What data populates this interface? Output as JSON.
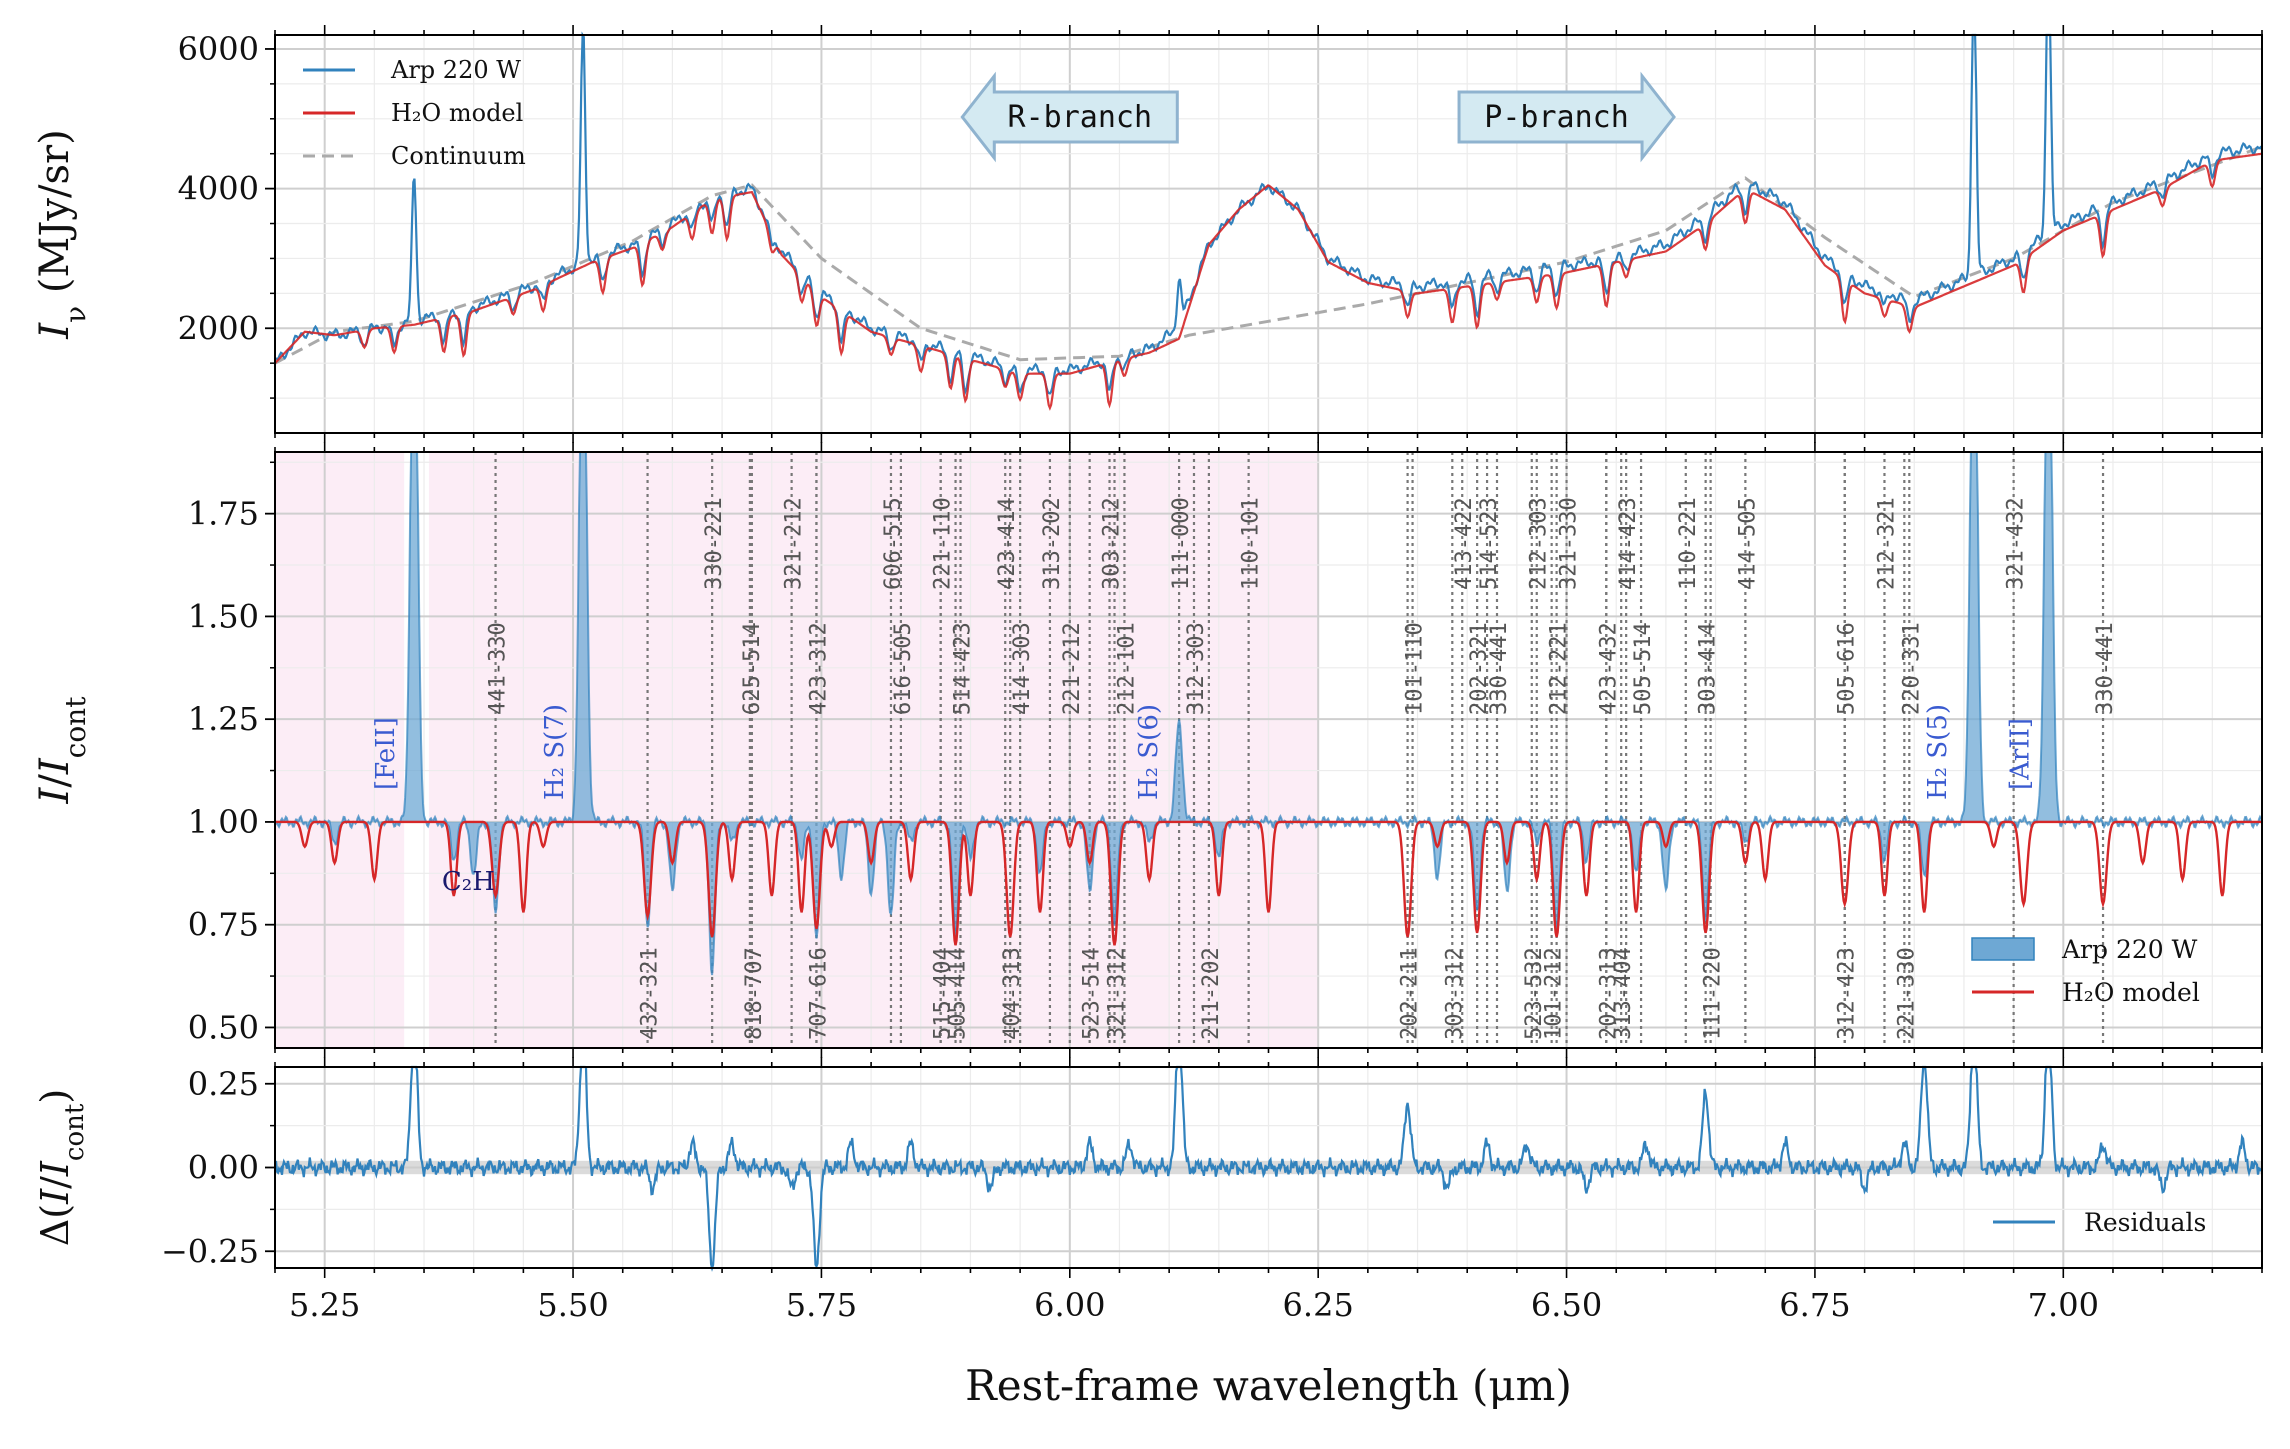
{
  "chart_data": [
    {
      "panel": "top",
      "type": "line",
      "ylabel": "I_ν (MJy/sr)",
      "ylim": [
        500,
        6200
      ],
      "xlim": [
        5.2,
        7.2
      ],
      "yticks": [
        "2000",
        "4000",
        "6000"
      ],
      "legend": {
        "placement": "top-left",
        "entries": [
          "Arp 220 W",
          "H₂O model",
          "Continuum"
        ]
      },
      "annotations": [
        {
          "text": "R-branch",
          "direction": "left",
          "x": 6.0
        },
        {
          "text": "P-branch",
          "direction": "right",
          "x": 6.5
        }
      ],
      "series": [
        {
          "name": "Arp 220 W",
          "color": "#3182bd",
          "x": [
            5.2,
            5.23,
            5.26,
            5.3,
            5.34,
            5.4,
            5.46,
            5.52,
            5.56,
            5.6,
            5.64,
            5.68,
            5.71,
            5.75,
            5.8,
            5.85,
            5.9,
            5.95,
            6.0,
            6.05,
            6.08,
            6.11,
            6.14,
            6.17,
            6.2,
            6.23,
            6.26,
            6.3,
            6.35,
            6.4,
            6.45,
            6.5,
            6.55,
            6.6,
            6.64,
            6.68,
            6.72,
            6.76,
            6.8,
            6.85,
            6.9,
            6.95,
            7.0,
            7.05,
            7.1,
            7.15,
            7.2
          ],
          "y": [
            1500,
            1950,
            1900,
            2000,
            2100,
            2300,
            2600,
            3000,
            3200,
            3500,
            3900,
            4000,
            3100,
            2500,
            2000,
            1800,
            1600,
            1400,
            1400,
            1600,
            1700,
            2000,
            3200,
            3700,
            4050,
            3700,
            3000,
            2700,
            2600,
            2700,
            2800,
            2900,
            3000,
            3200,
            3600,
            4100,
            3800,
            3000,
            2600,
            2400,
            2700,
            3000,
            3500,
            3800,
            4100,
            4500,
            4600
          ]
        },
        {
          "name": "H₂O model",
          "color": "#d62728",
          "x": [
            5.2,
            5.23,
            5.26,
            5.3,
            5.34,
            5.4,
            5.46,
            5.52,
            5.56,
            5.6,
            5.64,
            5.68,
            5.71,
            5.75,
            5.8,
            5.85,
            5.9,
            5.95,
            6.0,
            6.05,
            6.08,
            6.11,
            6.14,
            6.17,
            6.2,
            6.23,
            6.26,
            6.3,
            6.35,
            6.4,
            6.45,
            6.5,
            6.55,
            6.6,
            6.64,
            6.68,
            6.72,
            6.76,
            6.8,
            6.85,
            6.9,
            6.95,
            7.0,
            7.05,
            7.1,
            7.15,
            7.2
          ],
          "y": [
            1500,
            1950,
            1900,
            2000,
            2050,
            2250,
            2550,
            2950,
            3150,
            3450,
            3850,
            3950,
            3050,
            2450,
            1950,
            1750,
            1550,
            1350,
            1350,
            1550,
            1650,
            1850,
            3200,
            3700,
            4050,
            3700,
            2950,
            2650,
            2500,
            2600,
            2700,
            2800,
            2950,
            3100,
            3500,
            4000,
            3700,
            2900,
            2500,
            2300,
            2600,
            2900,
            3400,
            3700,
            4000,
            4400,
            4500
          ]
        },
        {
          "name": "Continuum",
          "color": "#aaaaaa",
          "x": [
            5.2,
            5.26,
            5.34,
            5.46,
            5.56,
            5.64,
            5.68,
            5.75,
            5.85,
            5.95,
            6.05,
            6.12,
            6.2,
            6.3,
            6.4,
            6.5,
            6.6,
            6.68,
            6.76,
            6.85,
            6.95,
            7.05,
            7.2
          ],
          "y": [
            1500,
            1950,
            2100,
            2650,
            3250,
            3900,
            4050,
            3000,
            2000,
            1550,
            1600,
            1900,
            2100,
            2350,
            2650,
            2950,
            3400,
            4150,
            3300,
            2450,
            3000,
            3800,
            4600
          ]
        }
      ]
    },
    {
      "panel": "middle",
      "type": "line",
      "ylabel": "I/I_cont",
      "ylim": [
        0.45,
        1.9
      ],
      "xlim": [
        5.2,
        7.2
      ],
      "yticks": [
        "0.50",
        "0.75",
        "1.00",
        "1.25",
        "1.50",
        "1.75"
      ],
      "shaded_regions": [
        [
          5.2,
          5.33
        ],
        [
          5.355,
          6.25
        ]
      ],
      "legend": {
        "placement": "bottom-right",
        "entries": [
          "Arp 220 W",
          "H₂O model"
        ]
      },
      "species_labels": [
        {
          "text": "[FeII]",
          "x": 5.34
        },
        {
          "text": "H₂ S(7)",
          "x": 5.51
        },
        {
          "text": "H₂ S(6)",
          "x": 6.11
        },
        {
          "text": "H₂ S(5)",
          "x": 6.91
        },
        {
          "text": "[ArII]",
          "x": 6.985
        },
        {
          "text": "C₂H",
          "x": 5.37
        }
      ],
      "upper_lines": [
        {
          "label": "441-330",
          "x": 5.422
        },
        {
          "label": "330-221",
          "x": 5.64
        },
        {
          "label": "625-514",
          "x": 5.678
        },
        {
          "label": "321-212",
          "x": 5.72
        },
        {
          "label": "423-312",
          "x": 5.745
        },
        {
          "label": "606-515",
          "x": 5.82
        },
        {
          "label": "616-505",
          "x": 5.83
        },
        {
          "label": "221-110",
          "x": 5.87
        },
        {
          "label": "514-423",
          "x": 5.89
        },
        {
          "label": "423-414",
          "x": 5.935
        },
        {
          "label": "414-303",
          "x": 5.95
        },
        {
          "label": "313-202",
          "x": 5.98
        },
        {
          "label": "221-212",
          "x": 6.0
        },
        {
          "label": "303-212",
          "x": 6.04
        },
        {
          "label": "212-101",
          "x": 6.055
        },
        {
          "label": "111-000",
          "x": 6.11
        },
        {
          "label": "312-303",
          "x": 6.125
        },
        {
          "label": "110-101",
          "x": 6.18
        },
        {
          "label": "101-110",
          "x": 6.345
        },
        {
          "label": "413-422",
          "x": 6.395
        },
        {
          "label": "202-321",
          "x": 6.41
        },
        {
          "label": "514-523",
          "x": 6.42
        },
        {
          "label": "330-441",
          "x": 6.43
        },
        {
          "label": "212-303",
          "x": 6.47
        },
        {
          "label": "212-221",
          "x": 6.49
        },
        {
          "label": "321-330",
          "x": 6.5
        },
        {
          "label": "423-432",
          "x": 6.54
        },
        {
          "label": "414-423",
          "x": 6.56
        },
        {
          "label": "505-514",
          "x": 6.575
        },
        {
          "label": "110-221",
          "x": 6.62
        },
        {
          "label": "303-414",
          "x": 6.64
        },
        {
          "label": "414-505",
          "x": 6.68
        },
        {
          "label": "505-616",
          "x": 6.78
        },
        {
          "label": "212-321",
          "x": 6.82
        },
        {
          "label": "220-331",
          "x": 6.845
        },
        {
          "label": "321-432",
          "x": 6.95
        },
        {
          "label": "330-441",
          "x": 7.04
        }
      ],
      "lower_lines": [
        {
          "label": "432-321",
          "x": 5.575
        },
        {
          "label": "818-707",
          "x": 5.68
        },
        {
          "label": "707-616",
          "x": 5.745
        },
        {
          "label": "515-404",
          "x": 5.87
        },
        {
          "label": "505-414",
          "x": 5.885
        },
        {
          "label": "404-313",
          "x": 5.94
        },
        {
          "label": "523-514",
          "x": 6.02
        },
        {
          "label": "321-312",
          "x": 6.045
        },
        {
          "label": "211-202",
          "x": 6.14
        },
        {
          "label": "202-211",
          "x": 6.34
        },
        {
          "label": "303-312",
          "x": 6.385
        },
        {
          "label": "523-532",
          "x": 6.465
        },
        {
          "label": "101-212",
          "x": 6.485
        },
        {
          "label": "202-313",
          "x": 6.54
        },
        {
          "label": "313-404",
          "x": 6.555
        },
        {
          "label": "111-220",
          "x": 6.645
        },
        {
          "label": "312-423",
          "x": 6.78
        },
        {
          "label": "221-330",
          "x": 6.84
        }
      ],
      "series": [
        {
          "name": "Arp 220 W",
          "color": "#3182bd",
          "emission": [
            {
              "x": 5.34,
              "peak": 1.9
            },
            {
              "x": 5.51,
              "peak": 1.9
            },
            {
              "x": 6.11,
              "peak": 1.15
            },
            {
              "x": 6.91,
              "peak": 1.9
            },
            {
              "x": 6.985,
              "peak": 1.9
            }
          ],
          "absorption": [
            {
              "x": 5.422,
              "depth": 0.78
            },
            {
              "x": 5.575,
              "depth": 0.75
            },
            {
              "x": 5.64,
              "depth": 0.63
            },
            {
              "x": 5.745,
              "depth": 0.72
            },
            {
              "x": 5.82,
              "depth": 0.77
            },
            {
              "x": 5.885,
              "depth": 0.72
            },
            {
              "x": 6.045,
              "depth": 0.75
            },
            {
              "x": 6.41,
              "depth": 0.78
            },
            {
              "x": 6.49,
              "depth": 0.75
            },
            {
              "x": 6.64,
              "depth": 0.77
            }
          ]
        },
        {
          "name": "H₂O model",
          "color": "#d62728",
          "absorption": [
            {
              "x": 5.422,
              "depth": 0.82
            },
            {
              "x": 5.575,
              "depth": 0.77
            },
            {
              "x": 5.64,
              "depth": 0.72
            },
            {
              "x": 5.745,
              "depth": 0.74
            },
            {
              "x": 5.885,
              "depth": 0.7
            },
            {
              "x": 5.94,
              "depth": 0.72
            },
            {
              "x": 6.045,
              "depth": 0.7
            },
            {
              "x": 6.34,
              "depth": 0.72
            },
            {
              "x": 6.41,
              "depth": 0.73
            },
            {
              "x": 6.49,
              "depth": 0.72
            },
            {
              "x": 6.64,
              "depth": 0.73
            },
            {
              "x": 6.78,
              "depth": 0.8
            },
            {
              "x": 6.96,
              "depth": 0.8
            },
            {
              "x": 7.04,
              "depth": 0.8
            }
          ]
        }
      ]
    },
    {
      "panel": "bottom",
      "type": "line",
      "ylabel": "Δ(I/I_cont)",
      "xlabel": "Rest-frame wavelength (μm)",
      "ylim": [
        -0.3,
        0.3
      ],
      "xlim": [
        5.2,
        7.2
      ],
      "yticks": [
        "−0.25",
        "0.00",
        "0.25"
      ],
      "xticks": [
        "5.25",
        "5.50",
        "5.75",
        "6.00",
        "6.25",
        "6.50",
        "6.75",
        "7.00"
      ],
      "legend": {
        "placement": "bottom-right",
        "entries": [
          "Residuals"
        ]
      },
      "series": [
        {
          "name": "Residuals",
          "color": "#3182bd",
          "spikes": [
            {
              "x": 5.34,
              "y": 0.3
            },
            {
              "x": 5.51,
              "y": 0.3
            },
            {
              "x": 5.64,
              "y": -0.2
            },
            {
              "x": 5.745,
              "y": -0.2
            },
            {
              "x": 6.11,
              "y": 0.3
            },
            {
              "x": 6.34,
              "y": 0.13
            },
            {
              "x": 6.64,
              "y": 0.15
            },
            {
              "x": 6.86,
              "y": 0.23
            },
            {
              "x": 6.91,
              "y": 0.3
            },
            {
              "x": 6.985,
              "y": 0.3
            }
          ]
        }
      ]
    }
  ]
}
